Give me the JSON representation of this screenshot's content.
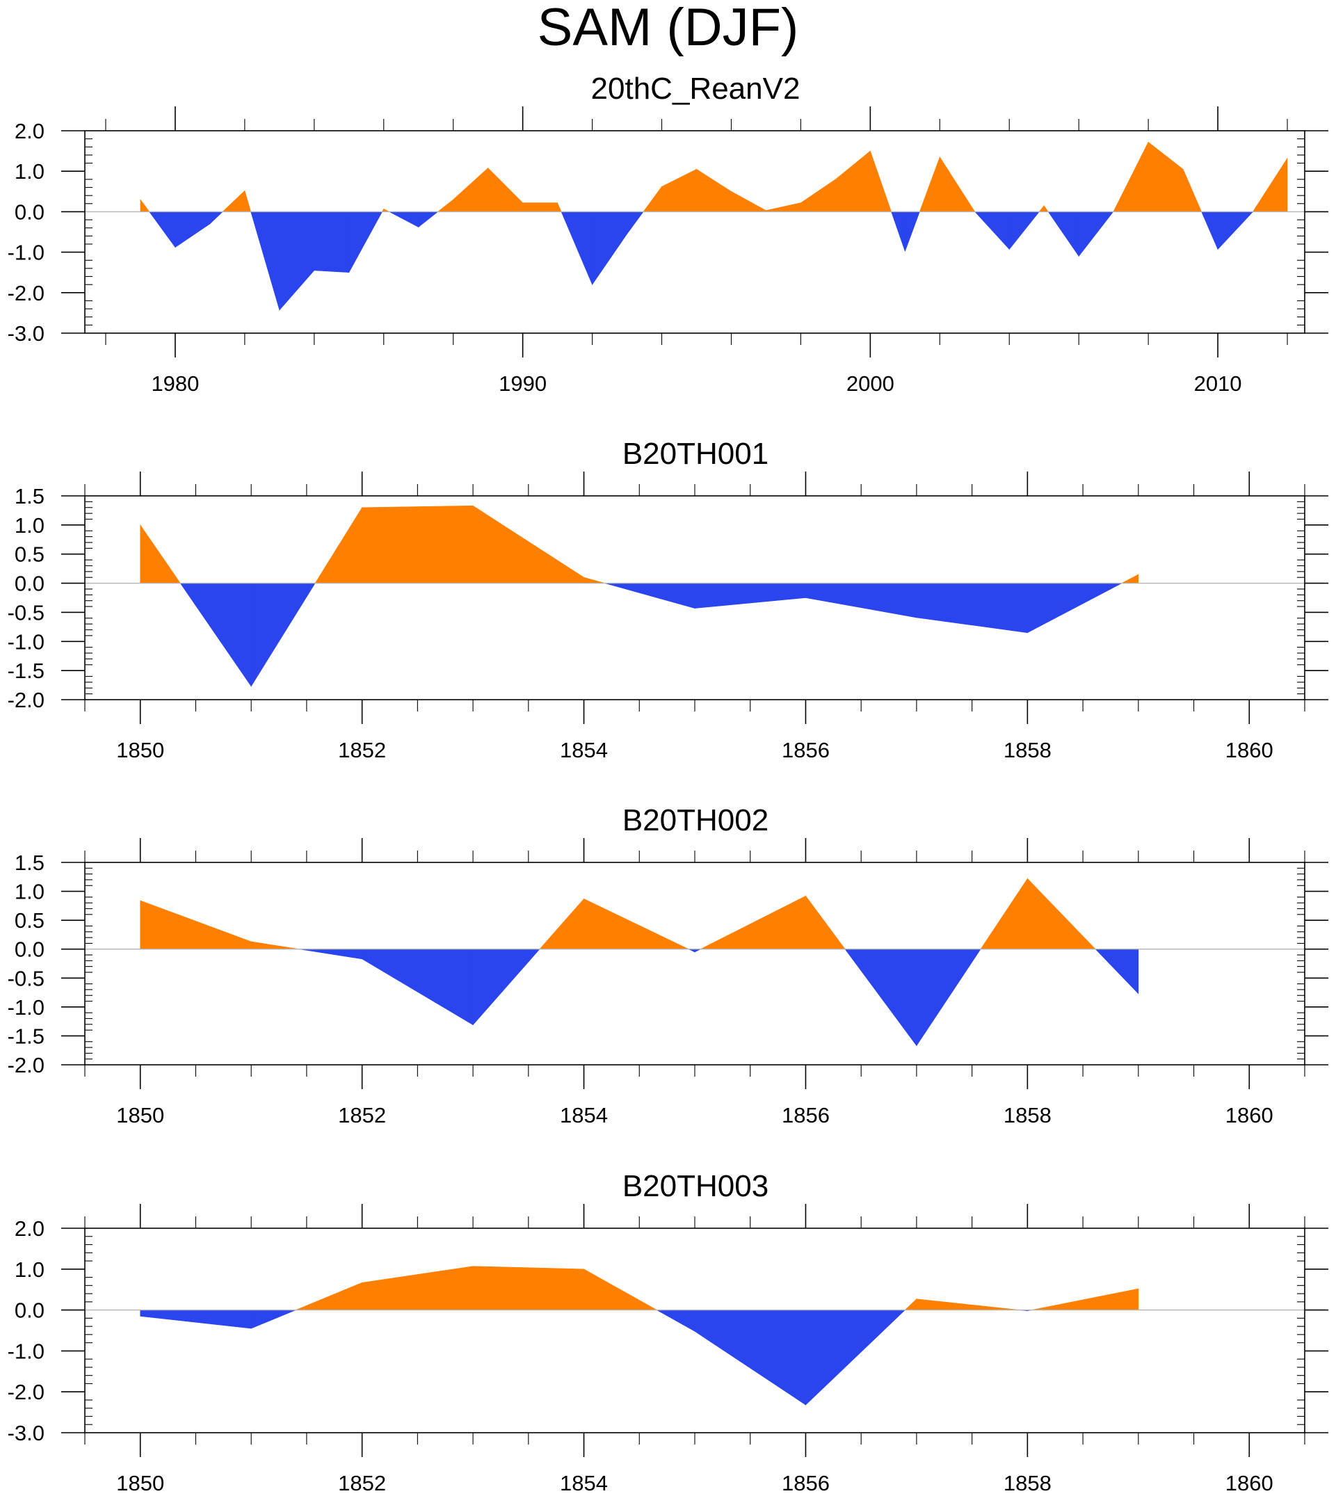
{
  "page": {
    "title": "SAM (DJF)"
  },
  "colors": {
    "positive": "#ff8000",
    "negative": "#2a44ee",
    "axis": "#000000",
    "zero_line": "#b4b4b4"
  },
  "chart_data": [
    {
      "type": "area",
      "title": "20thC_ReanV2",
      "x": [
        1979,
        1980,
        1981,
        1982,
        1983,
        1984,
        1985,
        1986,
        1987,
        1988,
        1989,
        1990,
        1991,
        1992,
        1993,
        1994,
        1995,
        1996,
        1997,
        1998,
        1999,
        2000,
        2001,
        2002,
        2003,
        2004,
        2005,
        2006,
        2007,
        2008,
        2009,
        2010,
        2011,
        2012
      ],
      "values": [
        0.3,
        -0.88,
        -0.3,
        0.52,
        -2.43,
        -1.45,
        -1.5,
        0.07,
        -0.38,
        0.3,
        1.08,
        0.22,
        0.22,
        -1.8,
        -0.55,
        0.62,
        1.05,
        0.5,
        0.03,
        0.22,
        0.8,
        1.5,
        -0.98,
        1.35,
        0.01,
        -0.93,
        0.15,
        -1.1,
        0.01,
        1.72,
        1.05,
        -0.93,
        -0.01,
        1.32
      ],
      "xlim": [
        1977.4,
        2012.5
      ],
      "ylim": [
        -3.0,
        2.0
      ],
      "yticks": [
        2.0,
        1.0,
        0.0,
        -1.0,
        -2.0,
        -3.0
      ],
      "ytick_labels": [
        "2.0",
        "1.0",
        "0.0",
        "-1.0",
        "-2.0",
        "-3.0"
      ],
      "xticks": [
        1980,
        1990,
        2000,
        2010
      ],
      "xtick_labels": [
        "1980",
        "1990",
        "2000",
        "2010"
      ],
      "xminor_step": 2,
      "yminor_step": 0.2,
      "xlabel": "",
      "ylabel": ""
    },
    {
      "type": "area",
      "title": "B20TH001",
      "x": [
        1850,
        1851,
        1852,
        1853,
        1854,
        1855,
        1856,
        1857,
        1858,
        1859
      ],
      "values": [
        1.0,
        -1.77,
        1.3,
        1.33,
        0.1,
        -0.43,
        -0.25,
        -0.59,
        -0.85,
        0.15
      ],
      "xlim": [
        1849.5,
        1860.5
      ],
      "ylim": [
        -2.0,
        1.5
      ],
      "yticks": [
        1.5,
        1.0,
        0.5,
        0.0,
        -0.5,
        -1.0,
        -1.5,
        -2.0
      ],
      "ytick_labels": [
        "1.5",
        "1.0",
        "0.5",
        "0.0",
        "-0.5",
        "-1.0",
        "-1.5",
        "-2.0"
      ],
      "xticks": [
        1850,
        1852,
        1854,
        1856,
        1858,
        1860
      ],
      "xtick_labels": [
        "1850",
        "1852",
        "1854",
        "1856",
        "1858",
        "1860"
      ],
      "xminor_step": 0.5,
      "yminor_step": 0.1,
      "xlabel": "",
      "ylabel": ""
    },
    {
      "type": "area",
      "title": "B20TH002",
      "x": [
        1850,
        1851,
        1852,
        1853,
        1854,
        1855,
        1856,
        1857,
        1858,
        1859
      ],
      "values": [
        0.84,
        0.13,
        -0.17,
        -1.31,
        0.87,
        -0.05,
        0.92,
        -1.67,
        1.22,
        -0.77
      ],
      "xlim": [
        1849.5,
        1860.5
      ],
      "ylim": [
        -2.0,
        1.5
      ],
      "yticks": [
        1.5,
        1.0,
        0.5,
        0.0,
        -0.5,
        -1.0,
        -1.5,
        -2.0
      ],
      "ytick_labels": [
        "1.5",
        "1.0",
        "0.5",
        "0.0",
        "-0.5",
        "-1.0",
        "-1.5",
        "-2.0"
      ],
      "xticks": [
        1850,
        1852,
        1854,
        1856,
        1858,
        1860
      ],
      "xtick_labels": [
        "1850",
        "1852",
        "1854",
        "1856",
        "1858",
        "1860"
      ],
      "xminor_step": 0.5,
      "yminor_step": 0.1,
      "xlabel": "",
      "ylabel": ""
    },
    {
      "type": "area",
      "title": "B20TH003",
      "x": [
        1850,
        1851,
        1852,
        1853,
        1854,
        1855,
        1856,
        1857,
        1858,
        1859
      ],
      "values": [
        -0.15,
        -0.45,
        0.67,
        1.07,
        1.0,
        -0.52,
        -2.32,
        0.27,
        -0.02,
        0.52
      ],
      "xlim": [
        1849.5,
        1860.5
      ],
      "ylim": [
        -3.0,
        2.0
      ],
      "yticks": [
        2.0,
        1.0,
        0.0,
        -1.0,
        -2.0,
        -3.0
      ],
      "ytick_labels": [
        "2.0",
        "1.0",
        "0.0",
        "-1.0",
        "-2.0",
        "-3.0"
      ],
      "xticks": [
        1850,
        1852,
        1854,
        1856,
        1858,
        1860
      ],
      "xtick_labels": [
        "1850",
        "1852",
        "1854",
        "1856",
        "1858",
        "1860"
      ],
      "xminor_step": 0.5,
      "yminor_step": 0.2,
      "xlabel": "",
      "ylabel": ""
    }
  ]
}
